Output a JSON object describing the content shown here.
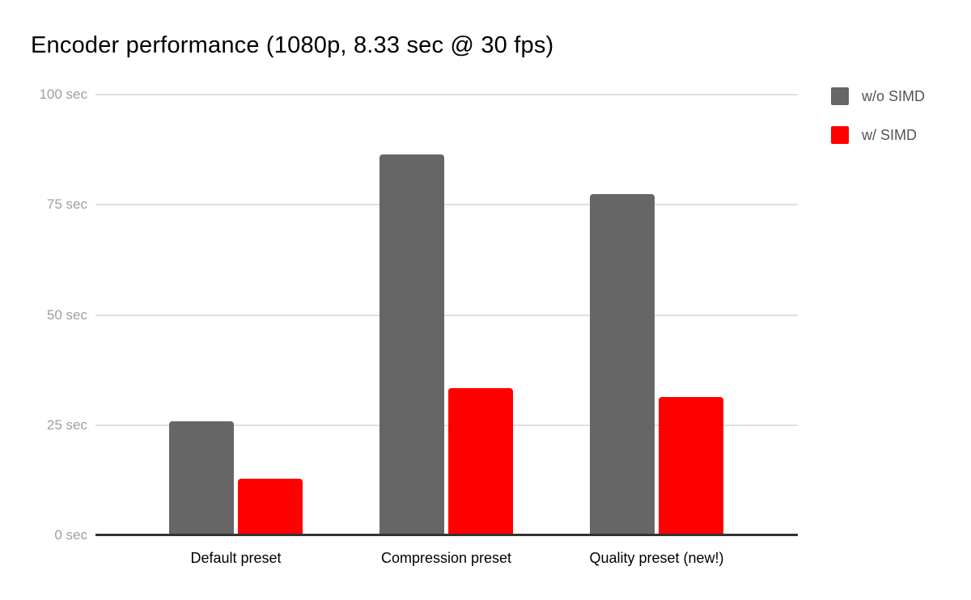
{
  "chart_data": {
    "type": "bar",
    "title": "Encoder performance (1080p, 8.33 sec @ 30 fps)",
    "categories": [
      "Default preset",
      "Compression preset",
      "Quality preset (new!)"
    ],
    "series": [
      {
        "name": "w/o SIMD",
        "color": "#666666",
        "values": [
          25.5,
          86,
          77
        ]
      },
      {
        "name": "w/ SIMD",
        "color": "#ff0000",
        "values": [
          12.5,
          33,
          31
        ]
      }
    ],
    "xlabel": "",
    "ylabel": "",
    "ylim": [
      0,
      100
    ],
    "yticks": [
      0,
      25,
      50,
      75,
      100
    ],
    "ytick_labels": [
      "0 sec",
      "25 sec",
      "50 sec",
      "75 sec",
      "100 sec"
    ],
    "grid": true,
    "legend_position": "top-right",
    "colors": {
      "background": "#ffffff",
      "title_text": "#000000",
      "gridline": "#e0e0e0",
      "baseline": "#333333",
      "ytick_text": "#9e9e9e",
      "xtick_text": "#000000",
      "legend_text": "#545454"
    }
  }
}
